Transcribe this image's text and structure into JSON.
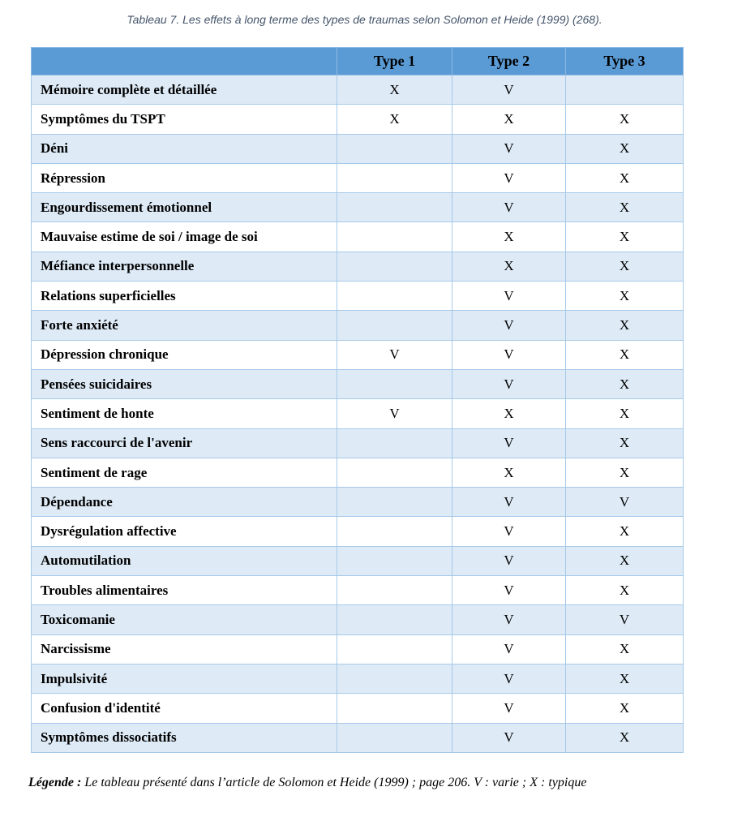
{
  "page": {
    "title": "Tableau 7. Les effets à long terme des types de traumas selon Solomon et Heide (1999) (268)."
  },
  "table": {
    "columns": [
      "",
      "Type 1",
      "Type 2",
      "Type 3"
    ],
    "rows": [
      {
        "label": "Mémoire complète et détaillée",
        "type1": "X",
        "type2": "V",
        "type3": ""
      },
      {
        "label": "Symptômes du TSPT",
        "type1": "X",
        "type2": "X",
        "type3": "X"
      },
      {
        "label": "Déni",
        "type1": "",
        "type2": "V",
        "type3": "X"
      },
      {
        "label": "Répression",
        "type1": "",
        "type2": "V",
        "type3": "X"
      },
      {
        "label": "Engourdissement émotionnel",
        "type1": "",
        "type2": "V",
        "type3": "X"
      },
      {
        "label": "Mauvaise estime de soi / image de soi",
        "type1": "",
        "type2": "X",
        "type3": "X"
      },
      {
        "label": "Méfiance interpersonnelle",
        "type1": "",
        "type2": "X",
        "type3": "X"
      },
      {
        "label": "Relations superficielles",
        "type1": "",
        "type2": "V",
        "type3": "X"
      },
      {
        "label": "Forte anxiété",
        "type1": "",
        "type2": "V",
        "type3": "X"
      },
      {
        "label": "Dépression chronique",
        "type1": "V",
        "type2": "V",
        "type3": "X"
      },
      {
        "label": "Pensées suicidaires",
        "type1": "",
        "type2": "V",
        "type3": "X"
      },
      {
        "label": "Sentiment de honte",
        "type1": "V",
        "type2": "X",
        "type3": "X"
      },
      {
        "label": "Sens raccourci de l'avenir",
        "type1": "",
        "type2": "V",
        "type3": "X"
      },
      {
        "label": "Sentiment de rage",
        "type1": "",
        "type2": "X",
        "type3": "X"
      },
      {
        "label": "Dépendance",
        "type1": "",
        "type2": "V",
        "type3": "V"
      },
      {
        "label": "Dysrégulation affective",
        "type1": "",
        "type2": "V",
        "type3": "X"
      },
      {
        "label": "Automutilation",
        "type1": "",
        "type2": "V",
        "type3": "X"
      },
      {
        "label": "Troubles alimentaires",
        "type1": "",
        "type2": "V",
        "type3": "X"
      },
      {
        "label": "Toxicomanie",
        "type1": "",
        "type2": "V",
        "type3": "V"
      },
      {
        "label": "Narcissisme",
        "type1": "",
        "type2": "V",
        "type3": "X"
      },
      {
        "label": "Impulsivité",
        "type1": "",
        "type2": "V",
        "type3": "X"
      },
      {
        "label": "Confusion d'identité",
        "type1": "",
        "type2": "V",
        "type3": "X"
      },
      {
        "label": "Symptômes dissociatifs",
        "type1": "",
        "type2": "V",
        "type3": "X"
      }
    ]
  },
  "legend": {
    "prefix": "Légende :",
    "text": " Le tableau présenté dans l’article de Solomon et Heide (1999) ; page 206. V : varie ; X : typique"
  },
  "colors": {
    "header_bg": "#5b9bd5",
    "row_alt_bg": "#deebf7",
    "row_bg": "#ffffff",
    "border": "#a6c9e8",
    "title_color": "#44546a"
  }
}
